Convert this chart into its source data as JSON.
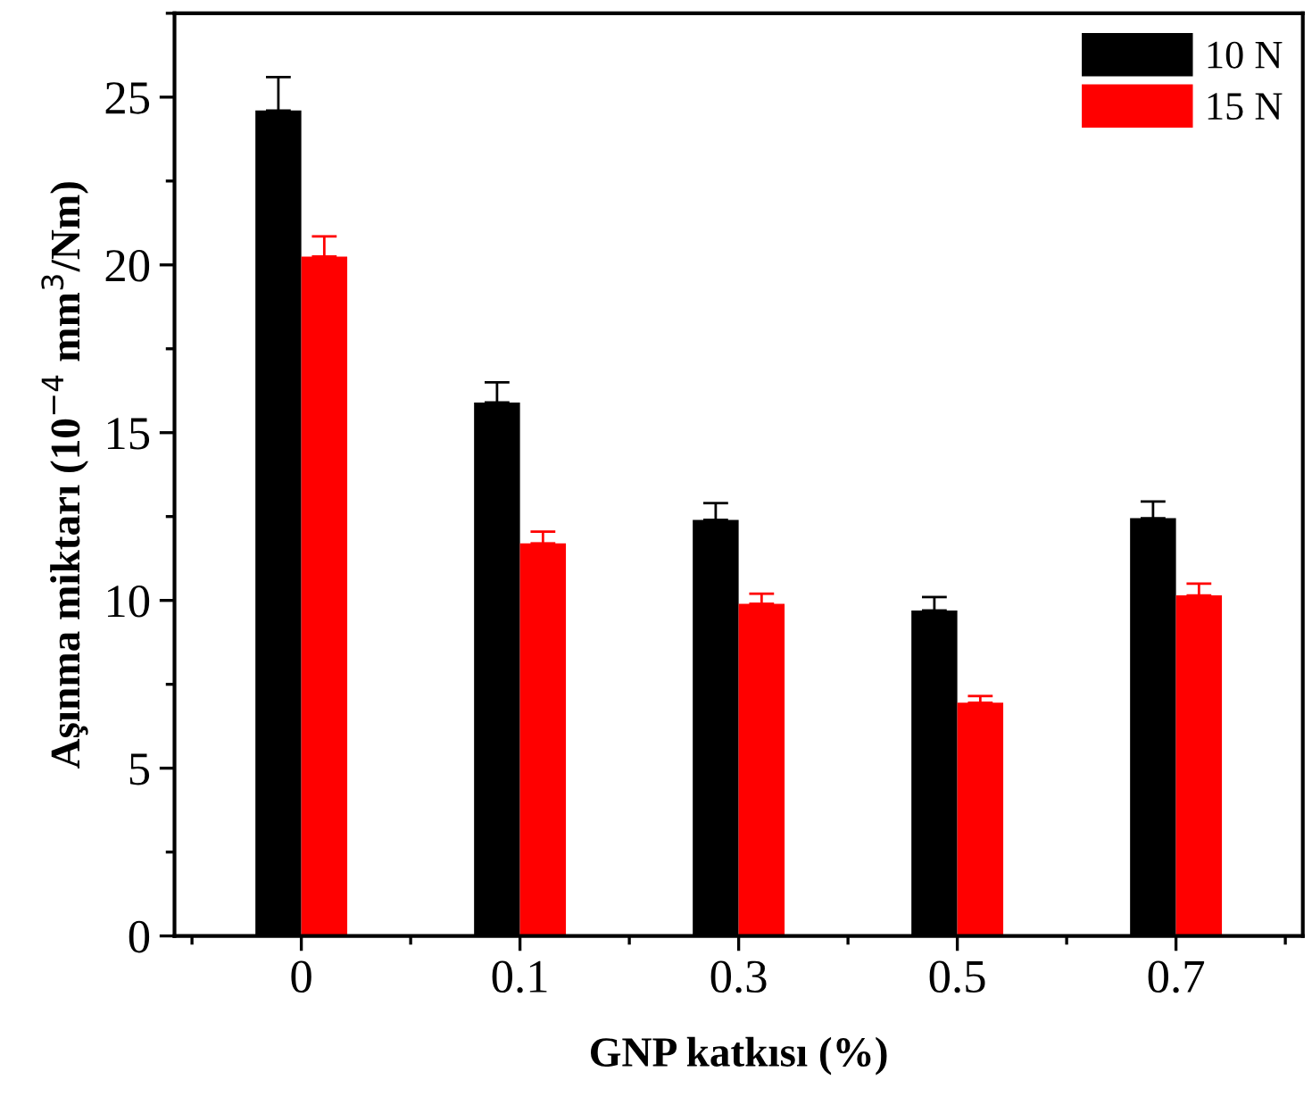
{
  "chart_data": {
    "type": "bar",
    "xlabel": "GNP katkısı (%)",
    "ylabel": "Aşınma miktarı (10$^{−4}$ mm$^{3}$/Nm)",
    "categories": [
      "0",
      "0.1",
      "0.3",
      "0.5",
      "0.7"
    ],
    "series": [
      {
        "name": "10 N",
        "color": "#000000",
        "values": [
          24.6,
          15.9,
          12.4,
          9.7,
          12.45
        ],
        "errors": [
          [
            24.6,
            25.6
          ],
          [
            15.9,
            16.5
          ],
          [
            12.4,
            12.9
          ],
          [
            9.7,
            10.1
          ],
          [
            12.45,
            12.95
          ]
        ]
      },
      {
        "name": "15 N",
        "color": "#ff0000",
        "values": [
          20.25,
          11.7,
          9.9,
          6.95,
          10.15
        ],
        "errors": [
          [
            20.25,
            20.85
          ],
          [
            11.7,
            12.05
          ],
          [
            9.9,
            10.2
          ],
          [
            6.95,
            7.15
          ],
          [
            10.15,
            10.5
          ]
        ]
      }
    ],
    "ylim": [
      0,
      27.5
    ],
    "yticks": [
      0,
      5,
      10,
      15,
      20,
      25
    ],
    "grid": false,
    "legend": "top right"
  }
}
